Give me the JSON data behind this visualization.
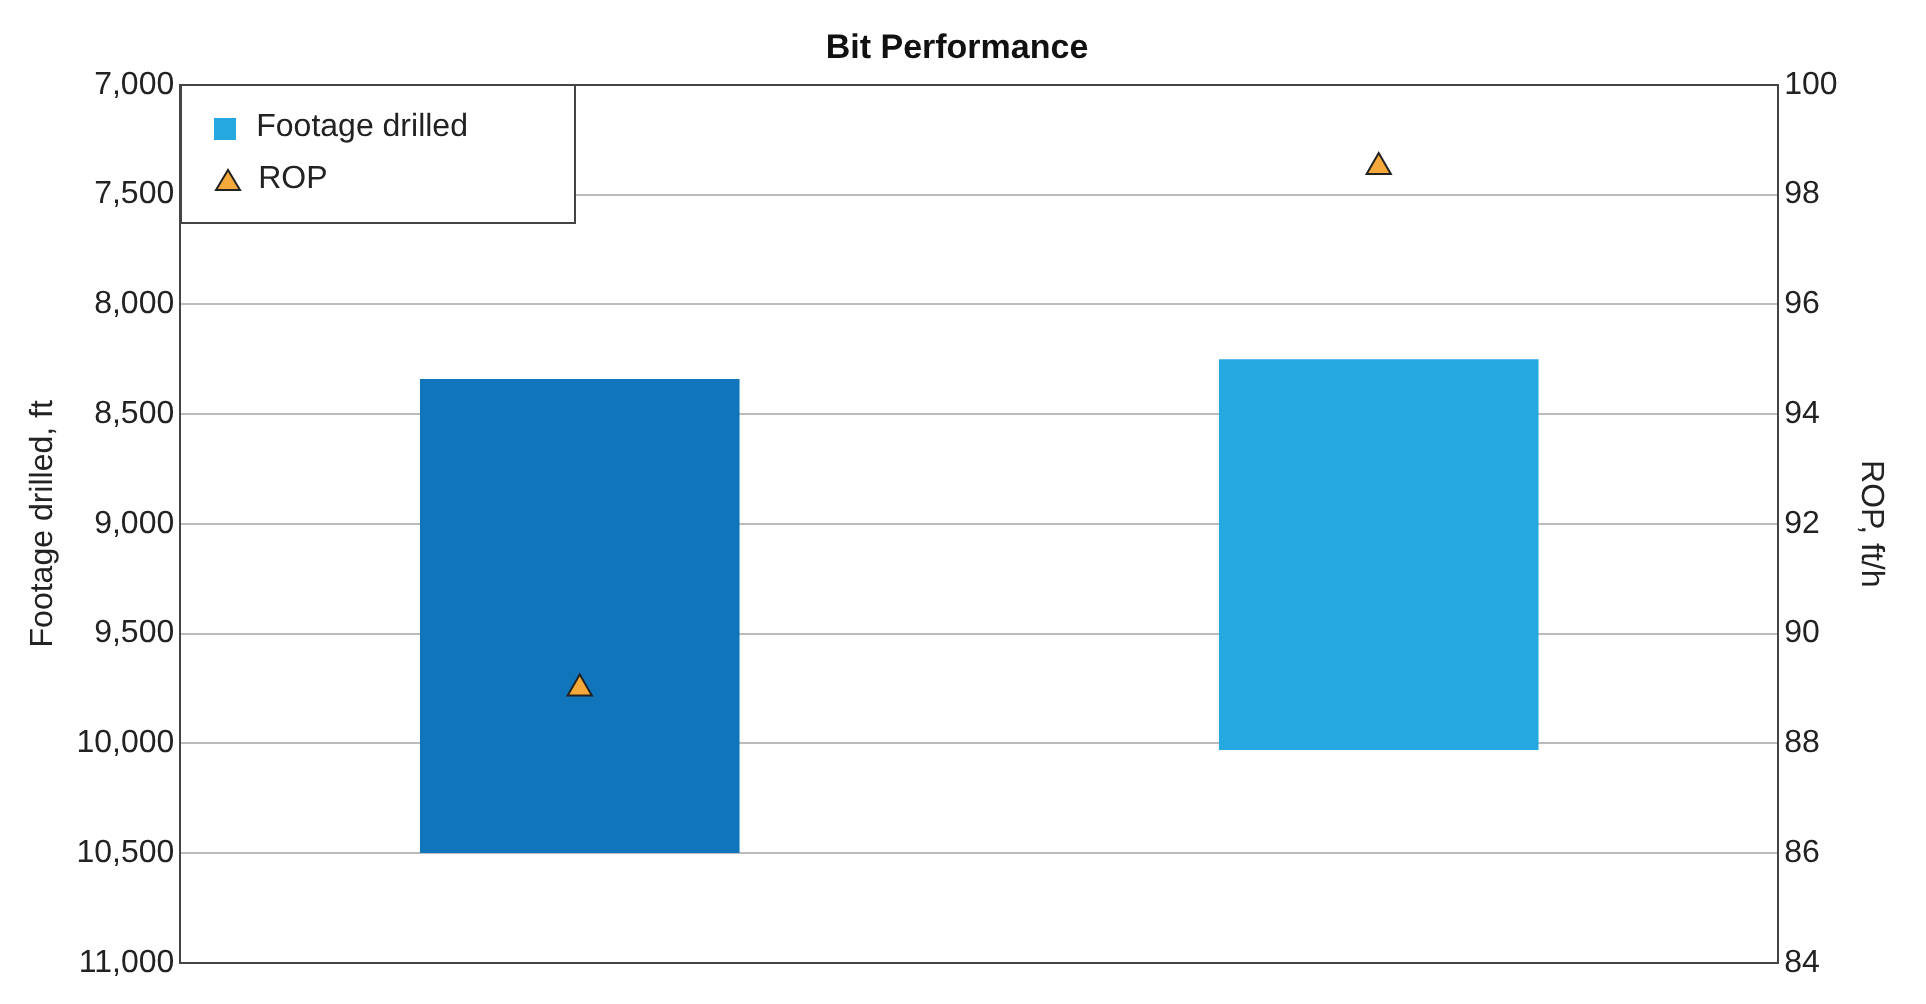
{
  "chart_data": {
    "type": "bar",
    "title": "Bit Performance",
    "ylabel": "Footage drilled, ft",
    "y2label": "ROP, ft/h",
    "categories": [
      null,
      null
    ],
    "series": [
      {
        "name": "Footage drilled",
        "color": "#25a8e0",
        "colors": [
          "#1175bb",
          "#25a8e0"
        ],
        "base": [
          8340,
          8250
        ],
        "values": [
          2160,
          1780
        ]
      },
      {
        "name": "ROP",
        "type": "scatter",
        "axis": "y2",
        "color": "#f5a93a",
        "marker": "triangle",
        "values": [
          89,
          98.5
        ]
      }
    ],
    "ylim": [
      11000,
      7000
    ],
    "yticks": [
      {
        "value": 7000,
        "label": "7,000"
      },
      {
        "value": 7500,
        "label": "7,500"
      },
      {
        "value": 8000,
        "label": "8,000"
      },
      {
        "value": 8500,
        "label": "8,500"
      },
      {
        "value": 9000,
        "label": "9,000"
      },
      {
        "value": 9500,
        "label": "9,500"
      },
      {
        "value": 10000,
        "label": "10,000"
      },
      {
        "value": 10500,
        "label": "10,500"
      },
      {
        "value": 11000,
        "label": "11,000"
      }
    ],
    "y2lim": [
      84,
      100
    ],
    "y2ticks": [
      84,
      86,
      88,
      90,
      92,
      94,
      96,
      98,
      100
    ],
    "grid": "y",
    "legend": "top left"
  }
}
